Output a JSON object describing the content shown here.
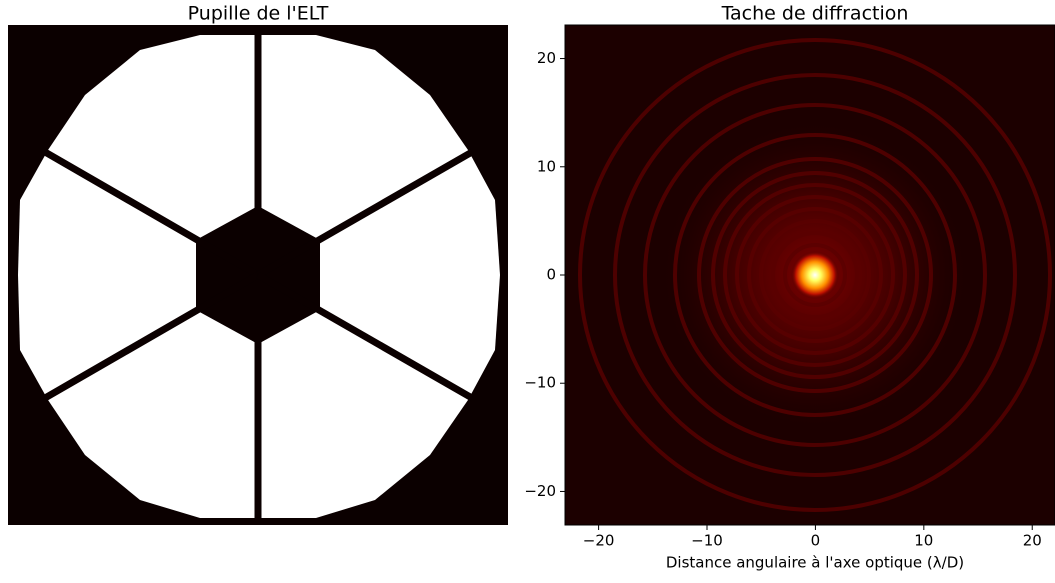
{
  "chart_data": [
    {
      "type": "image",
      "title": "Pupille de l'ELT"
    },
    {
      "type": "heatmap",
      "title": "Tache de diffraction",
      "xlabel": "Distance angulaire à l'axe optique (λ/D)",
      "xlim": [
        -23.1,
        22.1
      ],
      "ylim": [
        -23.1,
        23.1
      ],
      "xticks": [
        {
          "value": -20,
          "label": "−20"
        },
        {
          "value": -10,
          "label": "−10"
        },
        0,
        10,
        20
      ],
      "yticks": [
        {
          "value": -20,
          "label": "−20"
        },
        {
          "value": -10,
          "label": "−10"
        },
        0,
        10,
        20
      ]
    }
  ]
}
